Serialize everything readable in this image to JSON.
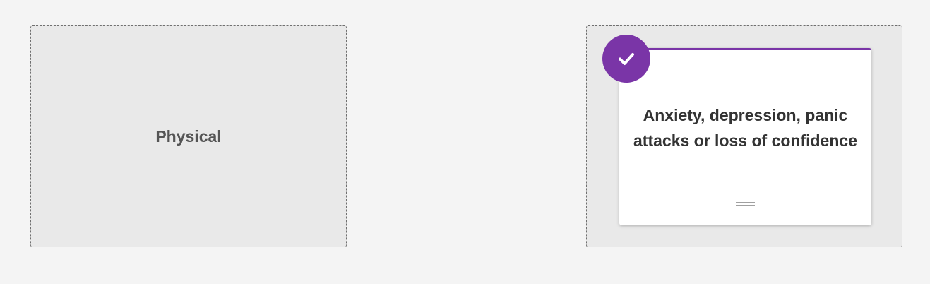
{
  "zones": [
    {
      "label": "Physical"
    },
    {
      "label": ""
    }
  ],
  "card": {
    "text": "Anxiety, depression, panic attacks or loss of confidence",
    "selected": true,
    "accent_color": "#7a35a7"
  },
  "icons": {
    "badge": "checkmark-icon",
    "handle": "drag-handle-icon"
  }
}
